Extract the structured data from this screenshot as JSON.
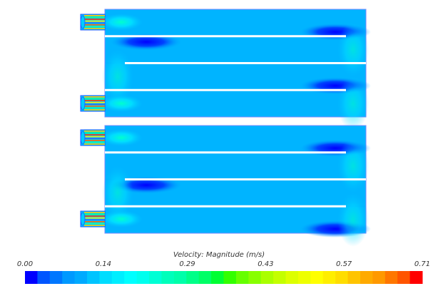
{
  "chart_data": {
    "type": "heatmap",
    "title": "",
    "colorbar": {
      "label": "Velocity: Magnitude (m/s)",
      "range": [
        0.0,
        0.71
      ],
      "ticks": [
        "0.00",
        "0.14",
        "0.29",
        "0.43",
        "0.57",
        "0.71"
      ],
      "tick_values": [
        0.0,
        0.14,
        0.29,
        0.43,
        0.57,
        0.71
      ],
      "colors": [
        "#0000ff",
        "#0055ff",
        "#0077ff",
        "#0099ff",
        "#00aaff",
        "#00c4ff",
        "#00ddff",
        "#00eeff",
        "#00ffff",
        "#00ffee",
        "#00ffd5",
        "#00ffbb",
        "#00ffaa",
        "#00ff88",
        "#00ff66",
        "#00ff33",
        "#33ff00",
        "#66ff00",
        "#88ff00",
        "#aaff00",
        "#c4ff00",
        "#ddff00",
        "#eeff00",
        "#ffff00",
        "#ffee00",
        "#ffdd00",
        "#ffc400",
        "#ffaa00",
        "#ff9900",
        "#ff7700",
        "#ff5500",
        "#ff0000"
      ]
    },
    "field_background_color": "#00b0ff",
    "slow_region_color": "#0000ff"
  }
}
